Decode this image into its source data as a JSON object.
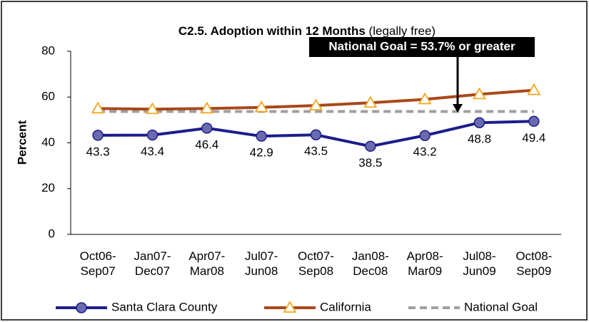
{
  "chart_data": {
    "type": "line",
    "title": "C2.5. Adoption within 12 Months",
    "subtitle": "(legally free)",
    "y_label": "Percent",
    "annotation": "National Goal = 53.7% or greater",
    "categories": [
      "Oct06-\nSep07",
      "Jan07-\nDec07",
      "Apr07-\nMar08",
      "Jul07-\nJun08",
      "Oct07-\nSep08",
      "Jan08-\nDec08",
      "Apr08-\nMar09",
      "Jul08-\nJun09",
      "Oct08-\nSep09"
    ],
    "series": [
      {
        "name": "Santa Clara County",
        "color": "#1c1c8c",
        "marker": "circle",
        "labels": true,
        "values": [
          43.3,
          43.4,
          46.4,
          42.9,
          43.5,
          38.5,
          43.2,
          48.8,
          49.4
        ]
      },
      {
        "name": "California",
        "color": "#a8481a",
        "marker": "triangle",
        "values": [
          55,
          54.7,
          55,
          55.5,
          56.3,
          57.5,
          59,
          61.2,
          63
        ]
      },
      {
        "name": "National Goal",
        "color": "#a0a0a0",
        "dashed": true,
        "values": [
          53.7,
          53.7,
          53.7,
          53.7,
          53.7,
          53.7,
          53.7,
          53.7,
          53.7
        ]
      }
    ],
    "ylim": [
      0,
      80
    ],
    "yticks": [
      0,
      20,
      40,
      60,
      80
    ],
    "grid": false,
    "legend": "bottom"
  }
}
